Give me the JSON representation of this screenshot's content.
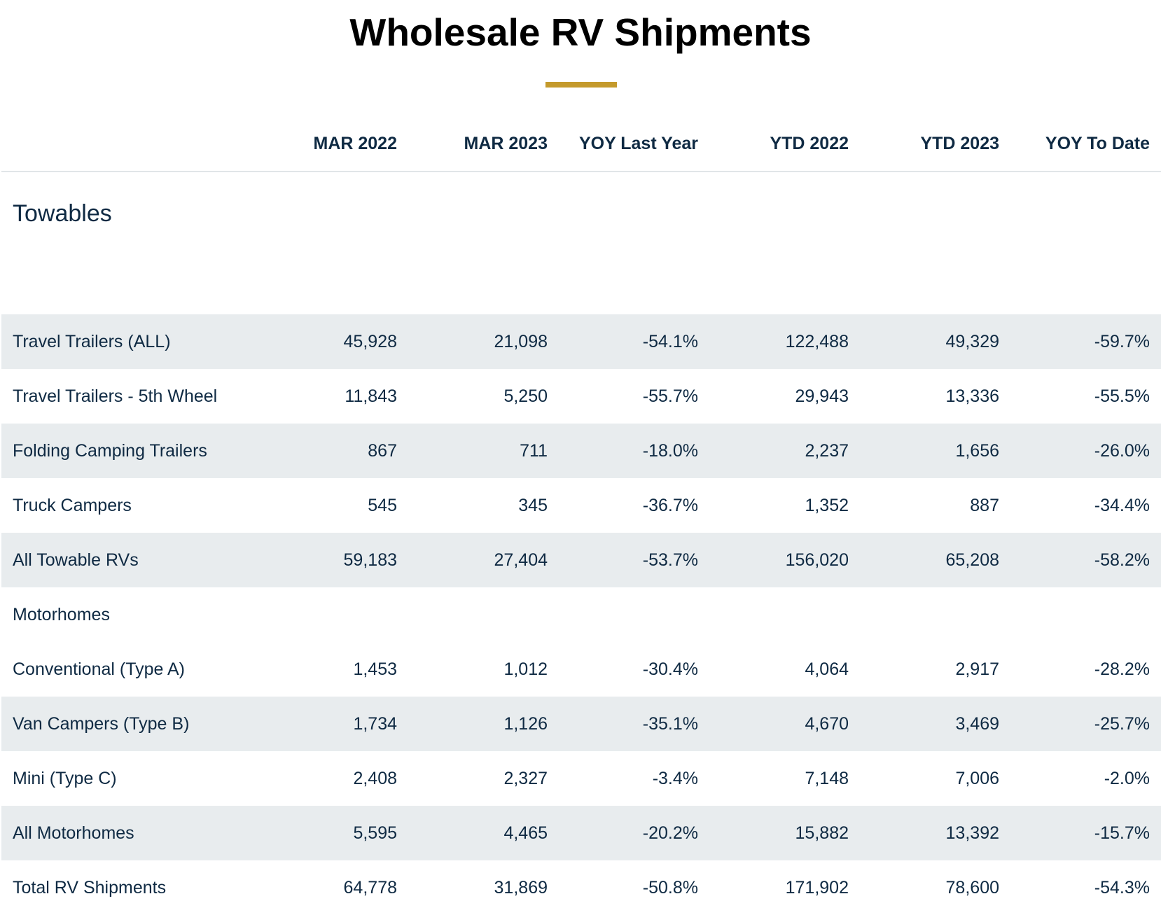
{
  "title": "Wholesale RV Shipments",
  "colors": {
    "accent": "#c49a2c",
    "text": "#0f2a43",
    "row_shade": "#e8ecee"
  },
  "chart_data": {
    "type": "table",
    "columns": [
      "",
      "MAR 2022",
      "MAR 2023",
      "YOY Last Year",
      "YTD 2022",
      "YTD 2023",
      "YOY To Date"
    ],
    "rows": [
      {
        "label": "Towables",
        "section": true,
        "values": []
      },
      {
        "label": "Travel Trailers (ALL)",
        "values": [
          "45,928",
          "21,098",
          "-54.1%",
          "122,488",
          "49,329",
          "-59.7%"
        ]
      },
      {
        "label": "Travel Trailers - 5th Wheel",
        "values": [
          "11,843",
          "5,250",
          "-55.7%",
          "29,943",
          "13,336",
          "-55.5%"
        ]
      },
      {
        "label": "Folding Camping Trailers",
        "values": [
          "867",
          "711",
          "-18.0%",
          "2,237",
          "1,656",
          "-26.0%"
        ]
      },
      {
        "label": "Truck Campers",
        "values": [
          "545",
          "345",
          "-36.7%",
          "1,352",
          "887",
          "-34.4%"
        ]
      },
      {
        "label": "All Towable RVs",
        "values": [
          "59,183",
          "27,404",
          "-53.7%",
          "156,020",
          "65,208",
          "-58.2%"
        ]
      },
      {
        "label": "Motorhomes",
        "section": true,
        "values": []
      },
      {
        "label": "Conventional (Type A)",
        "values": [
          "1,453",
          "1,012",
          "-30.4%",
          "4,064",
          "2,917",
          "-28.2%"
        ]
      },
      {
        "label": "Van Campers (Type B)",
        "values": [
          "1,734",
          "1,126",
          "-35.1%",
          "4,670",
          "3,469",
          "-25.7%"
        ]
      },
      {
        "label": "Mini (Type C)",
        "values": [
          "2,408",
          "2,327",
          "-3.4%",
          "7,148",
          "7,006",
          "-2.0%"
        ]
      },
      {
        "label": "All Motorhomes",
        "values": [
          "5,595",
          "4,465",
          "-20.2%",
          "15,882",
          "13,392",
          "-15.7%"
        ]
      },
      {
        "label": "Total RV Shipments",
        "values": [
          "64,778",
          "31,869",
          "-50.8%",
          "171,902",
          "78,600",
          "-54.3%"
        ]
      }
    ]
  }
}
